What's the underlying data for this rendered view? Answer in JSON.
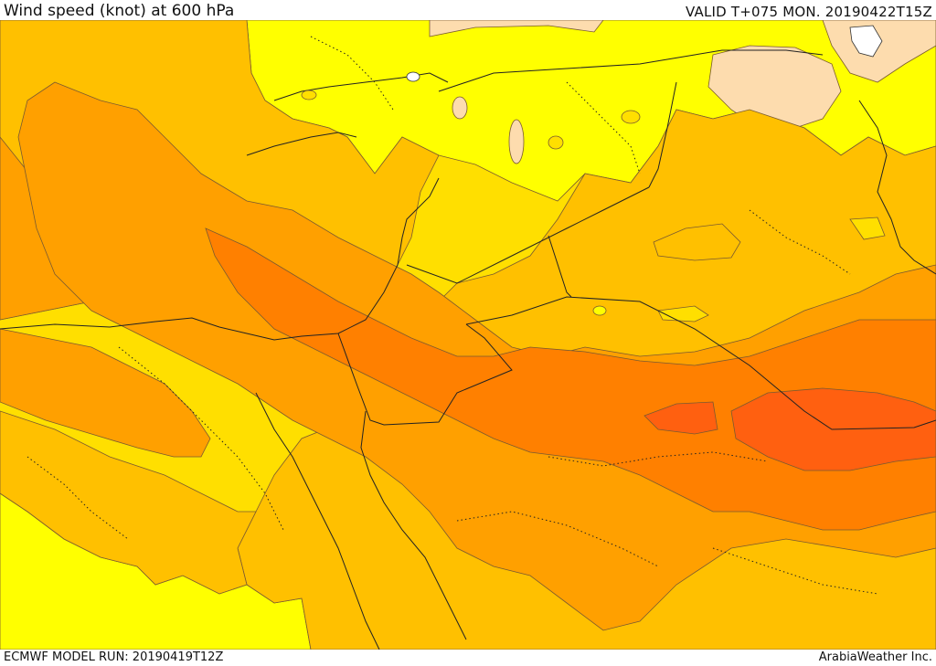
{
  "header": {
    "title": "Wind speed (knot) at 600 hPa",
    "valid_time": "VALID T+075 MON. 20190422T15Z"
  },
  "footer": {
    "model_run": "ECMWF MODEL RUN: 20190419T12Z",
    "credit": "ArabiaWeather Inc."
  },
  "map": {
    "variable": "wind speed",
    "level": "600 hPa",
    "unit": "knot",
    "fill_colors": [
      "#ffffff",
      "#fddcae",
      "#ffff00",
      "#ffdf00",
      "#ffc000",
      "#ffa000",
      "#ff8000",
      "#ff6010"
    ]
  }
}
